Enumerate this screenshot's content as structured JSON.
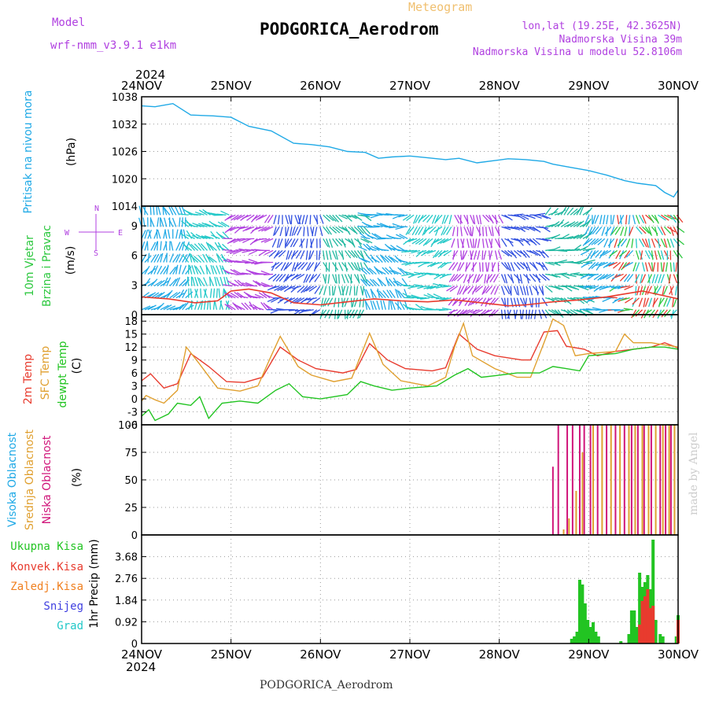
{
  "header": {
    "model_label": "Model",
    "model_value": "wrf-nmm_v3.9.1 e1km",
    "meteogram_label": "Meteogram",
    "station_title": "PODGORICA_Aerodrom",
    "lonlat": "lon,lat (19.25E, 42.3625N)",
    "elevation": "Nadmorska Visina 39m",
    "elevation_model": "Nadmorska Visina u modelu 52.8106m",
    "year_top": "2024",
    "year_bottom": "2024",
    "footer_station": "PODGORICA_Aerodrom",
    "credit": "made by Angel"
  },
  "colors": {
    "pressure": "#1fa9e6",
    "wind_speed": "#e83b2e",
    "wind_green": "#2ec840",
    "temp2m": "#e83b2e",
    "sfc": "#e0a030",
    "dewpt": "#22c422",
    "high_cloud": "#1fa9e6",
    "mid_cloud": "#e0a030",
    "low_cloud": "#d0157a",
    "rain_total": "#22c422",
    "rain_conv": "#e83b2e",
    "snow": "#4040e0",
    "grad": "#22c8c8",
    "freezing": "#f08020",
    "purple": "#b040e0"
  },
  "chart_data": [
    {
      "type": "line",
      "panel": "pressure",
      "ylabel": [
        "Pritisak na nivou mora",
        "(hPa)"
      ],
      "x": [
        "24NOV",
        "25NOV",
        "26NOV",
        "27NOV",
        "28NOV",
        "29NOV",
        "30NOV"
      ],
      "ylim": [
        1014,
        1038
      ],
      "yticks": [
        1014,
        1020,
        1026,
        1032,
        1038
      ],
      "series": [
        {
          "values": [
            [
              0,
              1036.0
            ],
            [
              0.15,
              1035.8
            ],
            [
              0.35,
              1036.5
            ],
            [
              0.55,
              1034.0
            ],
            [
              0.8,
              1033.8
            ],
            [
              1.0,
              1033.5
            ],
            [
              1.2,
              1031.5
            ],
            [
              1.45,
              1030.5
            ],
            [
              1.7,
              1027.8
            ],
            [
              1.9,
              1027.5
            ],
            [
              2.1,
              1027.0
            ],
            [
              2.3,
              1026.0
            ],
            [
              2.5,
              1025.8
            ],
            [
              2.65,
              1024.5
            ],
            [
              2.8,
              1024.8
            ],
            [
              3.0,
              1025.0
            ],
            [
              3.2,
              1024.6
            ],
            [
              3.4,
              1024.2
            ],
            [
              3.55,
              1024.5
            ],
            [
              3.75,
              1023.5
            ],
            [
              3.95,
              1024.0
            ],
            [
              4.1,
              1024.4
            ],
            [
              4.3,
              1024.2
            ],
            [
              4.5,
              1023.8
            ],
            [
              4.6,
              1023.2
            ],
            [
              4.8,
              1022.5
            ],
            [
              5.0,
              1021.8
            ],
            [
              5.2,
              1020.8
            ],
            [
              5.4,
              1019.6
            ],
            [
              5.55,
              1019.0
            ],
            [
              5.75,
              1018.5
            ],
            [
              5.85,
              1017.0
            ],
            [
              5.95,
              1016.0
            ],
            [
              6.0,
              1017.5
            ]
          ]
        }
      ]
    },
    {
      "type": "line",
      "panel": "wind",
      "ylabel": [
        "10m Vjetar",
        "Brzina i Pravac",
        "(m/s)"
      ],
      "direction_legend": [
        "N",
        "E",
        "W",
        "S"
      ],
      "ylim": [
        0,
        11
      ],
      "yticks": [
        0,
        3,
        6,
        9
      ],
      "series": [
        {
          "name": "Brzina",
          "values": [
            [
              0,
              1.8
            ],
            [
              0.3,
              1.6
            ],
            [
              0.6,
              1.2
            ],
            [
              0.85,
              1.4
            ],
            [
              1.0,
              2.4
            ],
            [
              1.2,
              2.6
            ],
            [
              1.45,
              2.2
            ],
            [
              1.7,
              1.2
            ],
            [
              2.0,
              1.0
            ],
            [
              2.3,
              1.3
            ],
            [
              2.6,
              1.6
            ],
            [
              2.9,
              1.4
            ],
            [
              3.2,
              1.3
            ],
            [
              3.5,
              1.5
            ],
            [
              3.8,
              1.2
            ],
            [
              4.1,
              0.9
            ],
            [
              4.3,
              1.0
            ],
            [
              4.6,
              1.3
            ],
            [
              4.9,
              1.5
            ],
            [
              5.2,
              1.8
            ],
            [
              5.4,
              2.1
            ],
            [
              5.6,
              2.4
            ],
            [
              5.8,
              2.0
            ],
            [
              6.0,
              1.6
            ]
          ]
        }
      ]
    },
    {
      "type": "line",
      "panel": "temperature",
      "ylabel": [
        "2m Temp",
        "SFC Temp",
        "dewpt Temp",
        "(C)"
      ],
      "ylim": [
        -6,
        19.5
      ],
      "yticks": [
        -6,
        -3,
        0,
        3,
        6,
        9,
        12,
        15,
        18
      ],
      "series": [
        {
          "name": "2m Temp",
          "values": [
            [
              0,
              4.2
            ],
            [
              0.1,
              5.8
            ],
            [
              0.25,
              2.5
            ],
            [
              0.4,
              3.5
            ],
            [
              0.55,
              10.5
            ],
            [
              0.75,
              7.5
            ],
            [
              0.95,
              4.0
            ],
            [
              1.15,
              3.8
            ],
            [
              1.35,
              5.0
            ],
            [
              1.55,
              12.0
            ],
            [
              1.75,
              9.0
            ],
            [
              1.95,
              7.0
            ],
            [
              2.25,
              6.0
            ],
            [
              2.4,
              6.8
            ],
            [
              2.55,
              12.8
            ],
            [
              2.75,
              9.0
            ],
            [
              2.95,
              7.0
            ],
            [
              3.25,
              6.5
            ],
            [
              3.4,
              7.2
            ],
            [
              3.55,
              15.0
            ],
            [
              3.75,
              11.5
            ],
            [
              3.95,
              10.0
            ],
            [
              4.25,
              9.0
            ],
            [
              4.35,
              9.0
            ],
            [
              4.5,
              15.5
            ],
            [
              4.65,
              15.8
            ],
            [
              4.75,
              12.2
            ],
            [
              4.95,
              11.5
            ],
            [
              5.1,
              10.0
            ],
            [
              5.3,
              11.0
            ],
            [
              5.5,
              11.5
            ],
            [
              5.7,
              12.0
            ],
            [
              5.85,
              13.0
            ],
            [
              6.0,
              11.8
            ]
          ]
        },
        {
          "name": "SFC Temp",
          "values": [
            [
              0,
              -0.5
            ],
            [
              0.05,
              0.8
            ],
            [
              0.15,
              -0.2
            ],
            [
              0.25,
              -1.0
            ],
            [
              0.4,
              2.0
            ],
            [
              0.5,
              12.0
            ],
            [
              0.65,
              8.0
            ],
            [
              0.85,
              2.5
            ],
            [
              1.1,
              1.8
            ],
            [
              1.3,
              3.0
            ],
            [
              1.45,
              10.0
            ],
            [
              1.55,
              14.5
            ],
            [
              1.75,
              7.5
            ],
            [
              1.9,
              5.5
            ],
            [
              2.15,
              4.0
            ],
            [
              2.35,
              4.8
            ],
            [
              2.55,
              15.2
            ],
            [
              2.7,
              8.0
            ],
            [
              2.9,
              4.2
            ],
            [
              3.2,
              3.0
            ],
            [
              3.4,
              5.0
            ],
            [
              3.5,
              12.0
            ],
            [
              3.6,
              17.5
            ],
            [
              3.7,
              10.0
            ],
            [
              3.95,
              7.0
            ],
            [
              4.2,
              5.0
            ],
            [
              4.35,
              5.0
            ],
            [
              4.5,
              13.0
            ],
            [
              4.6,
              18.5
            ],
            [
              4.72,
              17.0
            ],
            [
              4.85,
              10.0
            ],
            [
              5.0,
              10.5
            ],
            [
              5.3,
              11.0
            ],
            [
              5.4,
              15.0
            ],
            [
              5.5,
              13.0
            ],
            [
              5.7,
              13.0
            ],
            [
              5.85,
              12.5
            ],
            [
              6.0,
              12.0
            ]
          ]
        },
        {
          "name": "dewpt Temp",
          "values": [
            [
              0,
              -4.0
            ],
            [
              0.08,
              -2.5
            ],
            [
              0.15,
              -5.0
            ],
            [
              0.3,
              -3.5
            ],
            [
              0.4,
              -1.0
            ],
            [
              0.55,
              -1.5
            ],
            [
              0.65,
              0.5
            ],
            [
              0.75,
              -4.5
            ],
            [
              0.9,
              -1.0
            ],
            [
              1.1,
              -0.5
            ],
            [
              1.3,
              -1.0
            ],
            [
              1.5,
              2.0
            ],
            [
              1.65,
              3.5
            ],
            [
              1.8,
              0.5
            ],
            [
              2.0,
              0.0
            ],
            [
              2.3,
              1.0
            ],
            [
              2.45,
              4.0
            ],
            [
              2.6,
              3.0
            ],
            [
              2.8,
              2.0
            ],
            [
              3.0,
              2.5
            ],
            [
              3.3,
              3.0
            ],
            [
              3.5,
              5.5
            ],
            [
              3.65,
              7.0
            ],
            [
              3.8,
              5.0
            ],
            [
              4.0,
              5.5
            ],
            [
              4.2,
              6.0
            ],
            [
              4.45,
              6.0
            ],
            [
              4.6,
              7.5
            ],
            [
              4.75,
              7.0
            ],
            [
              4.9,
              6.5
            ],
            [
              5.0,
              10.0
            ],
            [
              5.3,
              10.5
            ],
            [
              5.5,
              11.5
            ],
            [
              5.7,
              12.0
            ],
            [
              5.85,
              12.0
            ],
            [
              6.0,
              11.5
            ]
          ]
        }
      ]
    },
    {
      "type": "bar",
      "panel": "cloud",
      "ylabel": [
        "Visoka Oblacnost",
        "Srednja Oblacnost",
        "Niska Oblacnost",
        "(%)"
      ],
      "ylim": [
        0,
        100
      ],
      "yticks": [
        0,
        25,
        50,
        75,
        100
      ],
      "series": [
        {
          "name": "Niska",
          "values": [
            [
              4.6,
              62
            ],
            [
              4.66,
              100
            ],
            [
              4.76,
              100
            ],
            [
              4.82,
              100
            ],
            [
              4.9,
              100
            ],
            [
              4.95,
              100
            ],
            [
              5.02,
              100
            ],
            [
              5.1,
              100
            ],
            [
              5.2,
              100
            ],
            [
              5.3,
              100
            ],
            [
              5.4,
              100
            ],
            [
              5.48,
              100
            ],
            [
              5.55,
              100
            ],
            [
              5.62,
              100
            ],
            [
              5.7,
              100
            ],
            [
              5.8,
              100
            ],
            [
              5.86,
              100
            ],
            [
              5.92,
              100
            ]
          ]
        },
        {
          "name": "Srednja",
          "values": [
            [
              4.72,
              5
            ],
            [
              4.78,
              15
            ],
            [
              4.86,
              40
            ],
            [
              4.93,
              75
            ],
            [
              5.05,
              100
            ],
            [
              5.15,
              100
            ],
            [
              5.25,
              100
            ],
            [
              5.35,
              100
            ],
            [
              5.45,
              100
            ],
            [
              5.52,
              100
            ],
            [
              5.6,
              100
            ],
            [
              5.67,
              100
            ],
            [
              5.75,
              100
            ],
            [
              5.83,
              100
            ],
            [
              5.9,
              100
            ],
            [
              5.96,
              100
            ]
          ]
        },
        {
          "name": "Visoka",
          "values": []
        }
      ]
    },
    {
      "type": "bar",
      "panel": "precip",
      "ylabel": [
        "1hr Precip (mm)"
      ],
      "legend": [
        "Ukupna Kisa",
        "Konvek.Kisa",
        "Zaledj.Kisa",
        "Snijeg",
        "Grad"
      ],
      "ylim": [
        0,
        4.6
      ],
      "yticks": [
        0,
        0.92,
        1.84,
        2.76,
        3.68
      ],
      "x": [
        "24NOV",
        "25NOV",
        "26NOV",
        "27NOV",
        "28NOV",
        "29NOV",
        "30NOV"
      ],
      "series": [
        {
          "name": "Ukupna Kisa",
          "values": [
            [
              4.81,
              0.2
            ],
            [
              4.84,
              0.3
            ],
            [
              4.87,
              0.5
            ],
            [
              4.9,
              2.7
            ],
            [
              4.93,
              2.5
            ],
            [
              4.96,
              1.7
            ],
            [
              4.99,
              1.0
            ],
            [
              5.02,
              0.7
            ],
            [
              5.05,
              0.9
            ],
            [
              5.08,
              0.5
            ],
            [
              5.11,
              0.3
            ],
            [
              5.36,
              0.1
            ],
            [
              5.45,
              0.4
            ],
            [
              5.48,
              1.4
            ],
            [
              5.51,
              1.4
            ],
            [
              5.54,
              0.7
            ],
            [
              5.57,
              3.0
            ],
            [
              5.6,
              2.4
            ],
            [
              5.63,
              2.6
            ],
            [
              5.66,
              2.9
            ],
            [
              5.69,
              2.3
            ],
            [
              5.72,
              4.4
            ],
            [
              5.75,
              1.0
            ],
            [
              5.8,
              0.4
            ],
            [
              5.83,
              0.3
            ],
            [
              5.98,
              0.3
            ],
            [
              6.0,
              1.2
            ]
          ]
        },
        {
          "name": "Konvek.Kisa",
          "values": [
            [
              5.57,
              0.8
            ],
            [
              5.6,
              1.8
            ],
            [
              5.63,
              2.0
            ],
            [
              5.66,
              2.3
            ],
            [
              5.69,
              1.5
            ],
            [
              5.72,
              1.6
            ],
            [
              6.0,
              1.0
            ]
          ]
        }
      ]
    }
  ]
}
